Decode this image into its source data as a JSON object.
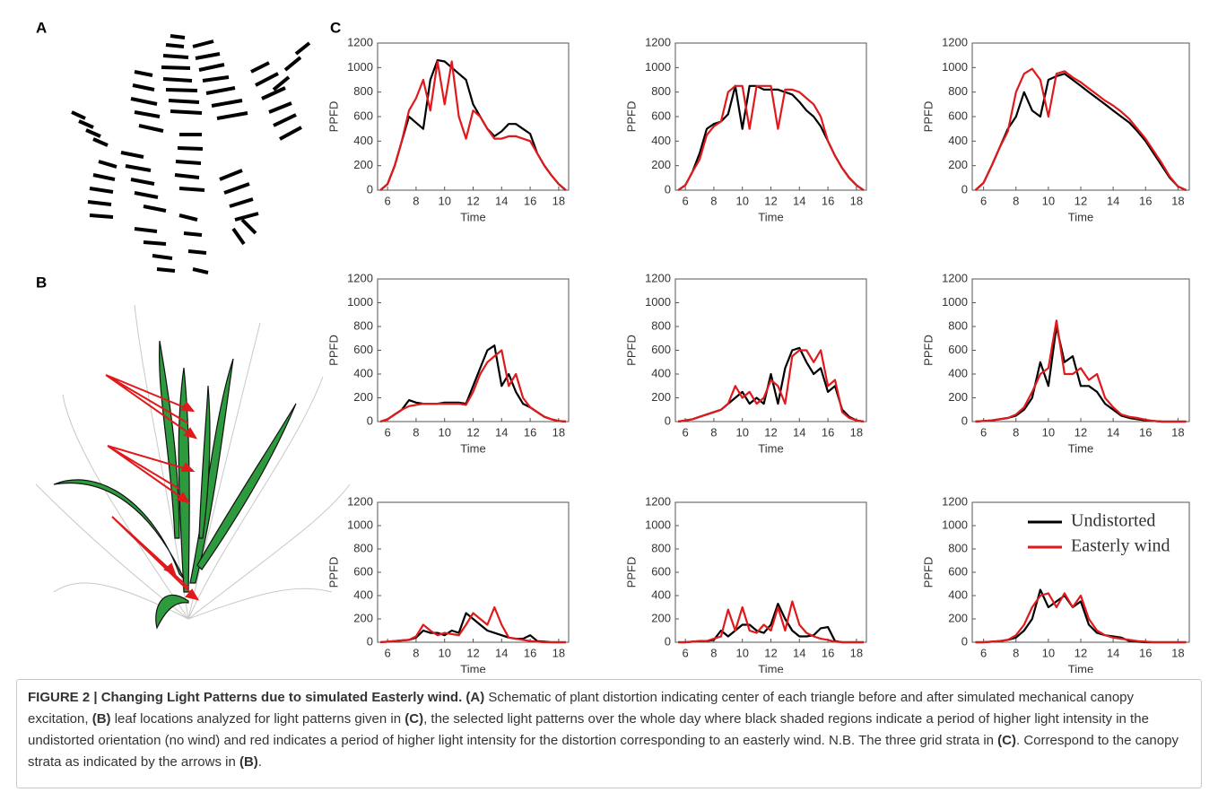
{
  "panels": [
    "A",
    "B",
    "C"
  ],
  "chart_data": [
    {
      "type": "line",
      "x_label": "Time",
      "y_label": "PPFD",
      "x": [
        5.5,
        6,
        6.5,
        7,
        7.5,
        8,
        8.5,
        9,
        9.5,
        10,
        10.5,
        11,
        11.5,
        12,
        12.5,
        13,
        13.5,
        14,
        14.5,
        15,
        15.5,
        16,
        16.5,
        17,
        17.5,
        18,
        18.5
      ],
      "xlim": [
        5.3,
        18.7
      ],
      "xticks": [
        6,
        8,
        10,
        12,
        14,
        16,
        18
      ],
      "ylim": [
        0,
        1200
      ],
      "yticks": [
        0,
        200,
        400,
        600,
        800,
        1000,
        1200
      ],
      "series": [
        {
          "color": "#000000",
          "values": [
            0,
            50,
            200,
            400,
            600,
            550,
            500,
            900,
            1060,
            1050,
            1000,
            950,
            900,
            700,
            600,
            500,
            440,
            480,
            540,
            540,
            500,
            460,
            300,
            200,
            120,
            50,
            0
          ]
        },
        {
          "color": "#e0191c",
          "values": [
            0,
            50,
            200,
            400,
            650,
            750,
            900,
            650,
            1050,
            700,
            1050,
            600,
            420,
            650,
            600,
            500,
            420,
            420,
            440,
            440,
            420,
            400,
            300,
            200,
            120,
            50,
            0
          ]
        }
      ]
    },
    {
      "type": "line",
      "x_label": "Time",
      "y_label": "PPFD",
      "x": [
        5.5,
        6,
        6.5,
        7,
        7.5,
        8,
        8.5,
        9,
        9.5,
        10,
        10.5,
        11,
        11.5,
        12,
        12.5,
        13,
        13.5,
        14,
        14.5,
        15,
        15.5,
        16,
        16.5,
        17,
        17.5,
        18,
        18.5
      ],
      "xlim": [
        5.3,
        18.7
      ],
      "xticks": [
        6,
        8,
        10,
        12,
        14,
        16,
        18
      ],
      "ylim": [
        0,
        1200
      ],
      "yticks": [
        0,
        200,
        400,
        600,
        800,
        1000,
        1200
      ],
      "series": [
        {
          "color": "#000000",
          "values": [
            0,
            40,
            150,
            300,
            500,
            540,
            560,
            620,
            850,
            500,
            850,
            850,
            820,
            820,
            820,
            800,
            780,
            720,
            650,
            600,
            520,
            400,
            280,
            180,
            100,
            40,
            0
          ]
        },
        {
          "color": "#e0191c",
          "values": [
            0,
            40,
            150,
            250,
            450,
            520,
            560,
            800,
            850,
            850,
            500,
            850,
            850,
            850,
            500,
            820,
            820,
            800,
            750,
            700,
            600,
            400,
            280,
            180,
            100,
            40,
            0
          ]
        }
      ]
    },
    {
      "type": "line",
      "x_label": "Time",
      "y_label": "PPFD",
      "x": [
        5.5,
        6,
        6.5,
        7,
        7.5,
        8,
        8.5,
        9,
        9.5,
        10,
        10.5,
        11,
        11.5,
        12,
        12.5,
        13,
        13.5,
        14,
        14.5,
        15,
        15.5,
        16,
        16.5,
        17,
        17.5,
        18,
        18.5
      ],
      "xlim": [
        5.3,
        18.7
      ],
      "xticks": [
        6,
        8,
        10,
        12,
        14,
        16,
        18
      ],
      "ylim": [
        0,
        1200
      ],
      "yticks": [
        0,
        200,
        400,
        600,
        800,
        1000,
        1200
      ],
      "series": [
        {
          "color": "#000000",
          "values": [
            0,
            60,
            200,
            350,
            500,
            600,
            800,
            650,
            600,
            900,
            930,
            950,
            900,
            850,
            800,
            750,
            700,
            650,
            600,
            550,
            480,
            400,
            300,
            200,
            100,
            30,
            0
          ]
        },
        {
          "color": "#e0191c",
          "values": [
            0,
            60,
            200,
            350,
            480,
            800,
            950,
            990,
            900,
            600,
            950,
            970,
            920,
            880,
            830,
            780,
            730,
            690,
            640,
            580,
            500,
            420,
            320,
            220,
            110,
            30,
            0
          ]
        }
      ]
    },
    {
      "type": "line",
      "x_label": "Time",
      "y_label": "PPFD",
      "x": [
        5.5,
        6,
        6.5,
        7,
        7.5,
        8,
        8.5,
        9,
        9.5,
        10,
        10.5,
        11,
        11.5,
        12,
        12.5,
        13,
        13.5,
        14,
        14.5,
        15,
        15.5,
        16,
        16.5,
        17,
        17.5,
        18,
        18.5
      ],
      "xlim": [
        5.3,
        18.7
      ],
      "xticks": [
        6,
        8,
        10,
        12,
        14,
        16,
        18
      ],
      "ylim": [
        0,
        1200
      ],
      "yticks": [
        0,
        200,
        400,
        600,
        800,
        1000,
        1200
      ],
      "series": [
        {
          "color": "#000000",
          "values": [
            0,
            20,
            60,
            100,
            180,
            160,
            150,
            150,
            150,
            160,
            160,
            160,
            150,
            300,
            450,
            600,
            640,
            300,
            400,
            250,
            150,
            120,
            80,
            40,
            20,
            5,
            0
          ]
        },
        {
          "color": "#e0191c",
          "values": [
            0,
            20,
            60,
            100,
            130,
            140,
            150,
            150,
            150,
            150,
            150,
            150,
            140,
            250,
            400,
            500,
            550,
            600,
            300,
            400,
            200,
            120,
            80,
            40,
            20,
            5,
            0
          ]
        }
      ]
    },
    {
      "type": "line",
      "x_label": "Time",
      "y_label": "PPFD",
      "x": [
        5.5,
        6,
        6.5,
        7,
        7.5,
        8,
        8.5,
        9,
        9.5,
        10,
        10.5,
        11,
        11.5,
        12,
        12.5,
        13,
        13.5,
        14,
        14.5,
        15,
        15.5,
        16,
        16.5,
        17,
        17.5,
        18,
        18.5
      ],
      "xlim": [
        5.3,
        18.7
      ],
      "xticks": [
        6,
        8,
        10,
        12,
        14,
        16,
        18
      ],
      "ylim": [
        0,
        1200
      ],
      "yticks": [
        0,
        200,
        400,
        600,
        800,
        1000,
        1200
      ],
      "series": [
        {
          "color": "#000000",
          "values": [
            0,
            10,
            20,
            40,
            60,
            80,
            100,
            150,
            200,
            250,
            150,
            200,
            150,
            400,
            150,
            450,
            600,
            620,
            500,
            400,
            450,
            250,
            300,
            100,
            40,
            10,
            0
          ]
        },
        {
          "color": "#e0191c",
          "values": [
            0,
            10,
            20,
            40,
            60,
            80,
            100,
            150,
            300,
            200,
            250,
            150,
            200,
            350,
            300,
            150,
            550,
            600,
            600,
            500,
            600,
            300,
            350,
            80,
            30,
            10,
            0
          ]
        }
      ]
    },
    {
      "type": "line",
      "x_label": "Time",
      "y_label": "PPFD",
      "x": [
        5.5,
        6,
        6.5,
        7,
        7.5,
        8,
        8.5,
        9,
        9.5,
        10,
        10.5,
        11,
        11.5,
        12,
        12.5,
        13,
        13.5,
        14,
        14.5,
        15,
        15.5,
        16,
        16.5,
        17,
        17.5,
        18,
        18.5
      ],
      "xlim": [
        5.3,
        18.7
      ],
      "xticks": [
        6,
        8,
        10,
        12,
        14,
        16,
        18
      ],
      "ylim": [
        0,
        1200
      ],
      "yticks": [
        0,
        200,
        400,
        600,
        800,
        1000,
        1200
      ],
      "series": [
        {
          "color": "#000000",
          "values": [
            0,
            5,
            10,
            20,
            30,
            50,
            100,
            200,
            500,
            300,
            800,
            500,
            550,
            300,
            300,
            250,
            150,
            100,
            50,
            30,
            20,
            10,
            5,
            0,
            0,
            0,
            0
          ]
        },
        {
          "color": "#e0191c",
          "values": [
            0,
            5,
            10,
            20,
            30,
            60,
            120,
            250,
            400,
            450,
            850,
            400,
            400,
            450,
            350,
            400,
            200,
            120,
            60,
            40,
            30,
            15,
            5,
            0,
            0,
            0,
            0
          ]
        }
      ]
    },
    {
      "type": "line",
      "x_label": "Time",
      "y_label": "PPFD",
      "x": [
        5.5,
        6,
        6.5,
        7,
        7.5,
        8,
        8.5,
        9,
        9.5,
        10,
        10.5,
        11,
        11.5,
        12,
        12.5,
        13,
        13.5,
        14,
        14.5,
        15,
        15.5,
        16,
        16.5,
        17,
        17.5,
        18,
        18.5
      ],
      "xlim": [
        5.3,
        18.7
      ],
      "xticks": [
        6,
        8,
        10,
        12,
        14,
        16,
        18
      ],
      "ylim": [
        0,
        1200
      ],
      "yticks": [
        0,
        200,
        400,
        600,
        800,
        1000,
        1200
      ],
      "series": [
        {
          "color": "#000000",
          "values": [
            0,
            5,
            10,
            15,
            20,
            40,
            100,
            80,
            80,
            60,
            100,
            80,
            250,
            200,
            150,
            100,
            80,
            60,
            40,
            30,
            30,
            60,
            10,
            5,
            0,
            0,
            0
          ]
        },
        {
          "color": "#e0191c",
          "values": [
            0,
            5,
            10,
            15,
            20,
            50,
            150,
            100,
            60,
            80,
            70,
            60,
            150,
            250,
            200,
            150,
            300,
            150,
            40,
            30,
            20,
            10,
            5,
            0,
            0,
            0,
            0
          ]
        }
      ]
    },
    {
      "type": "line",
      "x_label": "Time",
      "y_label": "PPFD",
      "x": [
        5.5,
        6,
        6.5,
        7,
        7.5,
        8,
        8.5,
        9,
        9.5,
        10,
        10.5,
        11,
        11.5,
        12,
        12.5,
        13,
        13.5,
        14,
        14.5,
        15,
        15.5,
        16,
        16.5,
        17,
        17.5,
        18,
        18.5
      ],
      "xlim": [
        5.3,
        18.7
      ],
      "xticks": [
        6,
        8,
        10,
        12,
        14,
        16,
        18
      ],
      "ylim": [
        0,
        1200
      ],
      "yticks": [
        0,
        200,
        400,
        600,
        800,
        1000,
        1200
      ],
      "series": [
        {
          "color": "#000000",
          "values": [
            0,
            0,
            5,
            10,
            10,
            20,
            100,
            50,
            100,
            150,
            150,
            100,
            80,
            150,
            330,
            200,
            100,
            50,
            50,
            60,
            120,
            130,
            10,
            0,
            0,
            0,
            0
          ]
        },
        {
          "color": "#e0191c",
          "values": [
            0,
            0,
            5,
            10,
            10,
            30,
            50,
            280,
            100,
            300,
            100,
            80,
            150,
            100,
            300,
            100,
            350,
            150,
            80,
            50,
            30,
            20,
            5,
            0,
            0,
            0,
            0
          ]
        }
      ]
    },
    {
      "type": "line",
      "x_label": "Time",
      "y_label": "PPFD",
      "legend": "upper right",
      "x": [
        5.5,
        6,
        6.5,
        7,
        7.5,
        8,
        8.5,
        9,
        9.5,
        10,
        10.5,
        11,
        11.5,
        12,
        12.5,
        13,
        13.5,
        14,
        14.5,
        15,
        15.5,
        16,
        16.5,
        17,
        17.5,
        18,
        18.5
      ],
      "xlim": [
        5.3,
        18.7
      ],
      "xticks": [
        6,
        8,
        10,
        12,
        14,
        16,
        18
      ],
      "ylim": [
        0,
        1200
      ],
      "yticks": [
        0,
        200,
        400,
        600,
        800,
        1000,
        1200
      ],
      "series": [
        {
          "name": "Undistorted",
          "color": "#000000",
          "values": [
            0,
            0,
            5,
            10,
            20,
            40,
            100,
            200,
            450,
            300,
            350,
            400,
            300,
            350,
            150,
            80,
            60,
            50,
            40,
            10,
            5,
            0,
            0,
            0,
            0,
            0,
            0
          ]
        },
        {
          "name": "Easterly wind",
          "color": "#e0191c",
          "values": [
            0,
            0,
            5,
            10,
            20,
            60,
            150,
            300,
            400,
            420,
            300,
            420,
            300,
            400,
            200,
            100,
            60,
            40,
            30,
            20,
            10,
            5,
            0,
            0,
            0,
            0,
            0
          ]
        }
      ]
    }
  ],
  "caption": [
    "FIGURE 2 | Changing Light Patterns due to simulated Easterly wind. (A)",
    " Schematic of plant distortion indicating center of each triangle before and after simulated mechanical canopy excitation, ",
    "(B)",
    " leaf locations analyzed for light patterns given in ",
    "(C)",
    ", the selected light patterns over the whole day where black shaded regions indicate a period of higher light intensity in the undistorted orientation (no wind) and red indicates a period of higher light intensity for the distortion corresponding to an easterly wind. N.B. The three grid strata in ",
    "(C)",
    ". Correspond to the canopy strata as indicated by the arrows in ",
    "(B)",
    "."
  ]
}
